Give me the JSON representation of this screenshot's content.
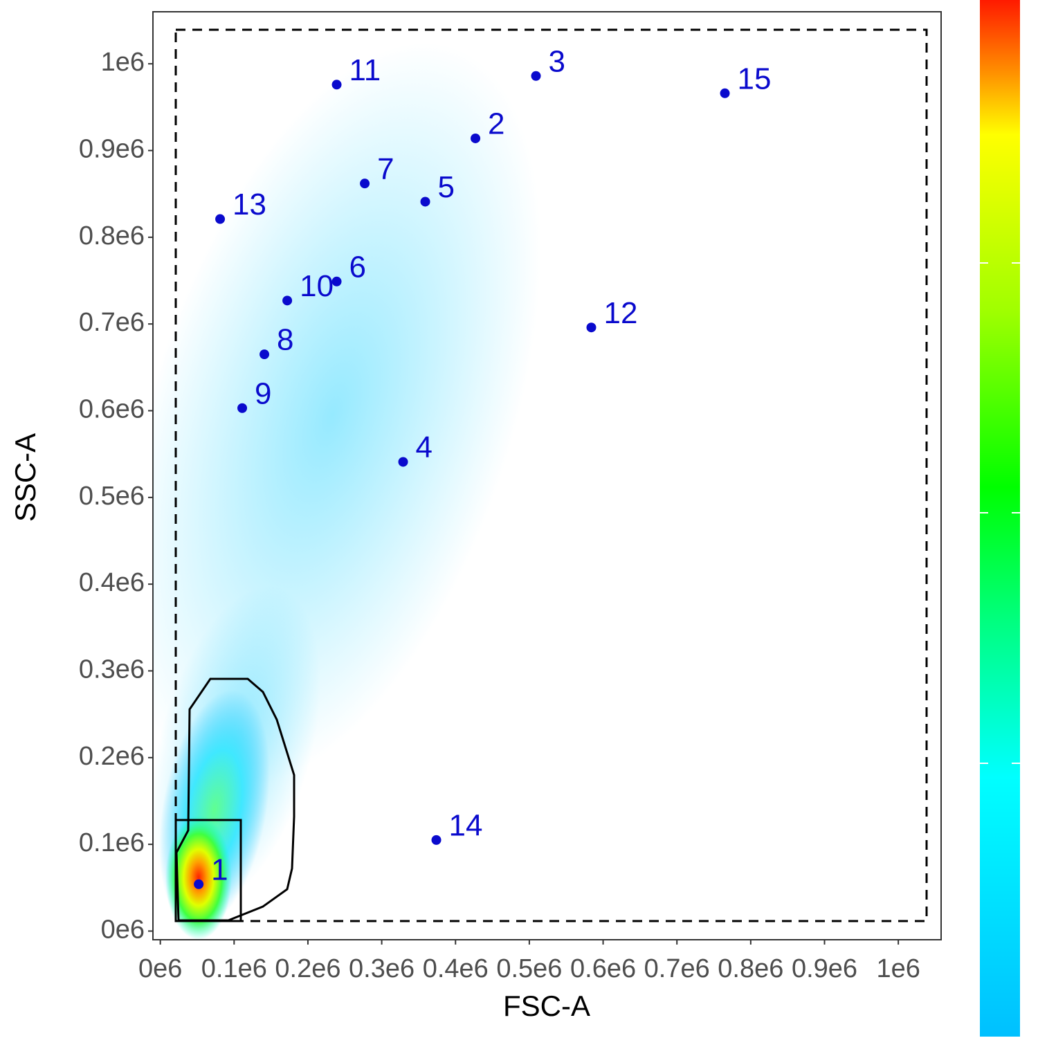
{
  "chart_data": {
    "type": "scatter",
    "x_label": "FSC-A",
    "y_label": "SSC-A",
    "xlim": [
      -10000,
      1058000
    ],
    "ylim": [
      -10000,
      1060000
    ],
    "xticks": [
      {
        "value": 0,
        "label": "0e6"
      },
      {
        "value": 100000,
        "label": "0.1e6"
      },
      {
        "value": 200000,
        "label": "0.2e6"
      },
      {
        "value": 300000,
        "label": "0.3e6"
      },
      {
        "value": 400000,
        "label": "0.4e6"
      },
      {
        "value": 500000,
        "label": "0.5e6"
      },
      {
        "value": 600000,
        "label": "0.6e6"
      },
      {
        "value": 700000,
        "label": "0.7e6"
      },
      {
        "value": 800000,
        "label": "0.8e6"
      },
      {
        "value": 900000,
        "label": "0.9e6"
      },
      {
        "value": 1000000,
        "label": "1e6"
      }
    ],
    "yticks": [
      {
        "value": 0,
        "label": "0e6"
      },
      {
        "value": 100000,
        "label": "0.1e6"
      },
      {
        "value": 200000,
        "label": "0.2e6"
      },
      {
        "value": 300000,
        "label": "0.3e6"
      },
      {
        "value": 400000,
        "label": "0.4e6"
      },
      {
        "value": 500000,
        "label": "0.5e6"
      },
      {
        "value": 600000,
        "label": "0.6e6"
      },
      {
        "value": 700000,
        "label": "0.7e6"
      },
      {
        "value": 800000,
        "label": "0.8e6"
      },
      {
        "value": 900000,
        "label": "0.9e6"
      },
      {
        "value": 1000000,
        "label": "1e6"
      }
    ],
    "color": "#0a0acd",
    "labels": [
      "1",
      "2",
      "3",
      "4",
      "5",
      "6",
      "7",
      "8",
      "9",
      "10",
      "11",
      "12",
      "13",
      "14",
      "15"
    ],
    "x": [
      52000,
      427000,
      509000,
      329000,
      359000,
      239000,
      277000,
      141000,
      111000,
      172000,
      239000,
      584000,
      81000,
      374000,
      765000
    ],
    "y": [
      54000,
      914000,
      986000,
      541000,
      841000,
      749000,
      862000,
      665000,
      603000,
      727000,
      976000,
      696000,
      821000,
      105000,
      966000
    ]
  }
}
